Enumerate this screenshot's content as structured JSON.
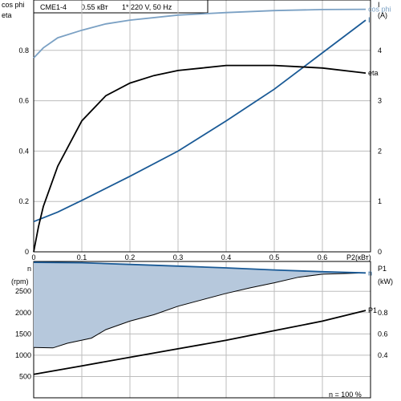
{
  "header": {
    "model": "CME1-4",
    "power": "0.55 кВт",
    "supply": "1* 220 V, 50 Hz"
  },
  "colors": {
    "cosphi": "#7ba1c4",
    "current": "#1a5a96",
    "eta": "#000000",
    "speed_line": "#1a5a96",
    "speed_fill": "#b6c8dc",
    "p1": "#000000",
    "grid": "#bdbdbd"
  },
  "chart_data": [
    {
      "type": "line",
      "title": "",
      "xlabel": "P2(кВт)",
      "xlim": [
        0,
        0.7
      ],
      "x_ticks": [
        "0",
        "0.1",
        "0.2",
        "0.3",
        "0.4",
        "0.5",
        "0.6"
      ],
      "left_axis_title": [
        "cos phi",
        "eta"
      ],
      "left_ylim": [
        0,
        1.0
      ],
      "left_ticks": [
        "0",
        "0.2",
        "0.4",
        "0.6",
        "0.8"
      ],
      "right_axis_title": [
        "I",
        "(A)"
      ],
      "right_ylim": [
        0,
        5
      ],
      "right_ticks": [
        "0",
        "1",
        "2",
        "3",
        "4"
      ],
      "grid": true,
      "series": [
        {
          "name": "cos phi",
          "axis": "left",
          "x": [
            0,
            0.02,
            0.05,
            0.1,
            0.15,
            0.2,
            0.3,
            0.4,
            0.5,
            0.6,
            0.69
          ],
          "y": [
            0.77,
            0.81,
            0.85,
            0.88,
            0.905,
            0.92,
            0.94,
            0.95,
            0.958,
            0.962,
            0.963
          ]
        },
        {
          "name": "I",
          "axis": "right",
          "x": [
            0,
            0.05,
            0.1,
            0.2,
            0.3,
            0.4,
            0.5,
            0.6,
            0.69
          ],
          "y": [
            0.6,
            0.79,
            1.02,
            1.5,
            2.0,
            2.6,
            3.23,
            3.95,
            4.6
          ]
        },
        {
          "name": "eta",
          "axis": "left",
          "x": [
            0,
            0.01,
            0.02,
            0.05,
            0.1,
            0.15,
            0.2,
            0.25,
            0.3,
            0.35,
            0.4,
            0.45,
            0.5,
            0.55,
            0.6,
            0.69
          ],
          "y": [
            0,
            0.1,
            0.18,
            0.34,
            0.52,
            0.62,
            0.67,
            0.7,
            0.72,
            0.73,
            0.74,
            0.74,
            0.74,
            0.735,
            0.73,
            0.71
          ]
        }
      ]
    },
    {
      "type": "area",
      "title": "",
      "xlim": [
        0,
        0.7
      ],
      "left_axis_title": [
        "n",
        "(rpm)"
      ],
      "left_ylim": [
        0,
        3200
      ],
      "left_ticks": [
        "500",
        "1000",
        "1500",
        "2000",
        "2500"
      ],
      "right_axis_title": [
        "P1",
        "(kW)"
      ],
      "right_ylim": [
        0,
        1.28
      ],
      "right_ticks": [
        "0.4",
        "0.6",
        "0.8"
      ],
      "grid": true,
      "footer_label": "n   = 100 %",
      "series": [
        {
          "name": "n",
          "axis": "left",
          "x": [
            0,
            0.1,
            0.2,
            0.3,
            0.4,
            0.5,
            0.6,
            0.69
          ],
          "y": [
            3180,
            3170,
            3130,
            3090,
            3050,
            3000,
            2960,
            2930
          ]
        },
        {
          "name": "",
          "axis": "left",
          "x": [
            0,
            0.04,
            0.07,
            0.12,
            0.15,
            0.2,
            0.25,
            0.3,
            0.35,
            0.4,
            0.45,
            0.5,
            0.55,
            0.6,
            0.69
          ],
          "y": [
            1180,
            1170,
            1280,
            1400,
            1600,
            1800,
            1950,
            2150,
            2300,
            2450,
            2580,
            2700,
            2830,
            2900,
            2930
          ]
        },
        {
          "name": "P1",
          "axis": "right",
          "x": [
            0,
            0.1,
            0.2,
            0.3,
            0.4,
            0.5,
            0.6,
            0.69
          ],
          "y": [
            0.22,
            0.3,
            0.38,
            0.46,
            0.54,
            0.63,
            0.72,
            0.82
          ]
        }
      ]
    }
  ]
}
